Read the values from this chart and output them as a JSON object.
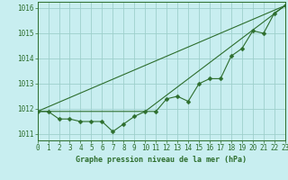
{
  "title": "Graphe pression niveau de la mer (hPa)",
  "background_color": "#c8eef0",
  "grid_color": "#9ecfcc",
  "line_color": "#2d6e2d",
  "x_values": [
    0,
    1,
    2,
    3,
    4,
    5,
    6,
    7,
    8,
    9,
    10,
    11,
    12,
    13,
    14,
    15,
    16,
    17,
    18,
    19,
    20,
    21,
    22,
    23
  ],
  "series1": [
    1011.9,
    1011.9,
    1011.6,
    1011.6,
    1011.5,
    1011.5,
    1011.5,
    1011.1,
    1011.4,
    1011.7,
    1011.9,
    1011.9,
    1012.4,
    1012.5,
    1012.3,
    1013.0,
    1013.2,
    1013.2,
    1014.1,
    1014.4,
    1015.1,
    1015.0,
    1015.8,
    1016.1
  ],
  "series2_x": [
    0,
    23
  ],
  "series2_y": [
    1011.9,
    1016.1
  ],
  "series3_x": [
    0,
    10,
    23
  ],
  "series3_y": [
    1011.9,
    1011.9,
    1016.1
  ],
  "xlim": [
    0,
    23
  ],
  "ylim": [
    1010.75,
    1016.25
  ],
  "yticks": [
    1011,
    1012,
    1013,
    1014,
    1015,
    1016
  ],
  "xticks": [
    0,
    1,
    2,
    3,
    4,
    5,
    6,
    7,
    8,
    9,
    10,
    11,
    12,
    13,
    14,
    15,
    16,
    17,
    18,
    19,
    20,
    21,
    22,
    23
  ]
}
